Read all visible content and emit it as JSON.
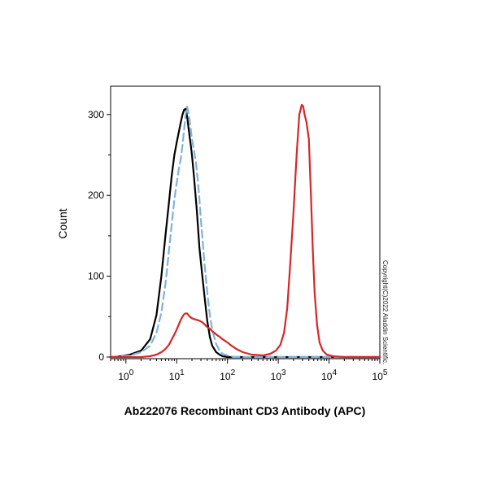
{
  "chart_data": {
    "type": "line",
    "title": "",
    "xlabel": "Ab222076 Recombinant CD3 Antibody (APC)",
    "ylabel": "Count",
    "x_scale": "log",
    "xlim": [
      0.5,
      100000
    ],
    "ylim": [
      0,
      335
    ],
    "x_ticks": [
      {
        "value": 1,
        "base": "10",
        "exp": "0"
      },
      {
        "value": 10,
        "base": "10",
        "exp": "1"
      },
      {
        "value": 100,
        "base": "10",
        "exp": "2"
      },
      {
        "value": 1000,
        "base": "10",
        "exp": "3"
      },
      {
        "value": 10000,
        "base": "10",
        "exp": "4"
      },
      {
        "value": 100000,
        "base": "10",
        "exp": "5"
      }
    ],
    "y_ticks": [
      {
        "value": 0,
        "label": "0"
      },
      {
        "value": 100,
        "label": "100"
      },
      {
        "value": 200,
        "label": "200"
      },
      {
        "value": 300,
        "label": "300"
      }
    ],
    "grid": false,
    "legend": "none",
    "series": [
      {
        "color": "#000000",
        "style": "solid",
        "x": [
          0.5,
          0.8,
          1.2,
          2,
          3,
          4,
          5,
          6,
          7,
          8,
          9,
          10,
          11,
          12,
          13,
          14,
          15,
          16,
          17,
          18,
          19,
          20,
          22,
          25,
          28,
          32,
          36,
          40,
          45,
          50,
          60,
          70,
          80,
          100,
          150,
          1000,
          100000
        ],
        "y": [
          0,
          1,
          3,
          8,
          22,
          52,
          100,
          150,
          190,
          225,
          250,
          265,
          278,
          290,
          300,
          306,
          307,
          298,
          285,
          272,
          262,
          250,
          222,
          180,
          135,
          100,
          70,
          45,
          25,
          14,
          6,
          3,
          1,
          0,
          0,
          0,
          0
        ]
      },
      {
        "color": "#7fb2dc",
        "style": "dashed",
        "x": [
          0.5,
          1.2,
          2,
          3,
          4,
          5,
          6,
          7,
          8,
          9,
          10,
          11,
          12,
          13,
          14,
          15,
          16,
          17,
          18,
          20,
          22,
          24,
          26,
          28,
          30,
          32,
          35,
          40,
          45,
          50,
          60,
          70,
          80,
          100,
          130,
          200,
          1000,
          100000
        ],
        "y": [
          0,
          2,
          6,
          14,
          30,
          55,
          90,
          130,
          165,
          195,
          215,
          232,
          245,
          262,
          282,
          300,
          310,
          303,
          292,
          270,
          255,
          240,
          220,
          195,
          170,
          148,
          118,
          80,
          52,
          34,
          16,
          8,
          4,
          2,
          0,
          0,
          0,
          0
        ]
      },
      {
        "color": "#d62728",
        "style": "solid",
        "x": [
          0.5,
          1,
          2,
          3,
          4,
          5,
          6,
          7,
          8,
          9,
          10,
          11,
          12,
          13,
          14,
          15,
          16,
          17,
          18,
          20,
          22,
          25,
          28,
          32,
          36,
          40,
          45,
          50,
          55,
          60,
          70,
          80,
          90,
          100,
          120,
          150,
          200,
          300,
          500,
          700,
          900,
          1100,
          1300,
          1500,
          1700,
          2000,
          2300,
          2600,
          2900,
          3100,
          3300,
          3600,
          4000,
          4400,
          4800,
          5200,
          5800,
          6500,
          7500,
          9000,
          12000,
          20000,
          100000
        ],
        "y": [
          0,
          0,
          0,
          1,
          3,
          6,
          10,
          15,
          22,
          28,
          34,
          40,
          46,
          50,
          53,
          54,
          54,
          52,
          50,
          48,
          47,
          46,
          45,
          43,
          40,
          37,
          35,
          32,
          30,
          28,
          25,
          22,
          20,
          18,
          14,
          10,
          6,
          3,
          2,
          4,
          8,
          15,
          30,
          60,
          110,
          180,
          250,
          300,
          312,
          310,
          300,
          290,
          270,
          200,
          130,
          80,
          40,
          18,
          8,
          3,
          1,
          0,
          0
        ]
      }
    ]
  },
  "copyright": "Copyright(C)2022 Aladdin Scientific."
}
